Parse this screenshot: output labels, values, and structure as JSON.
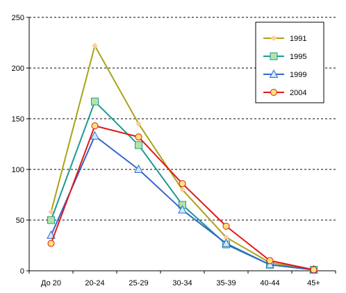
{
  "chart_data": {
    "type": "line",
    "title": "",
    "xlabel": "",
    "ylabel": "",
    "categories": [
      "До 20",
      "20-24",
      "25-29",
      "30-34",
      "35-39",
      "40-44",
      "45+"
    ],
    "ylim": [
      0,
      250
    ],
    "yticks": [
      0,
      50,
      100,
      150,
      200,
      250
    ],
    "grid": "horizontal-dashed",
    "legend_position": "top-right",
    "series": [
      {
        "name": "1991",
        "color": "#A9A318",
        "marker": "diamond",
        "marker_fill": "#FFCC99",
        "values": [
          58,
          222,
          145,
          80,
          33,
          8,
          1
        ]
      },
      {
        "name": "1995",
        "color": "#1B9A90",
        "marker": "square",
        "marker_fill": "#B5E3A7",
        "values": [
          50,
          167,
          124,
          65,
          26,
          6,
          1
        ]
      },
      {
        "name": "1999",
        "color": "#3366CC",
        "marker": "triangle",
        "marker_fill": "#CCECFF",
        "values": [
          35,
          133,
          100,
          60,
          27,
          6,
          1
        ]
      },
      {
        "name": "2004",
        "color": "#E01818",
        "marker": "circle",
        "marker_fill": "#FFE27A",
        "values": [
          27,
          143,
          132,
          86,
          44,
          10,
          1
        ]
      }
    ]
  }
}
